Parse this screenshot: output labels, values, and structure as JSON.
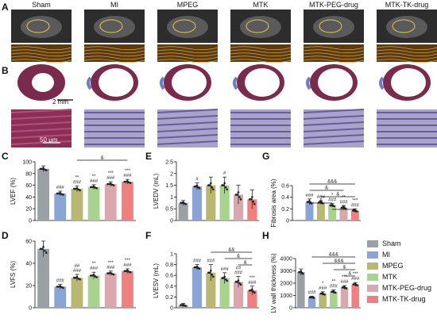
{
  "groups": [
    "Sham",
    "MI",
    "MPEG",
    "MTK",
    "MTK-PEG-drug",
    "MTK-TK-drug"
  ],
  "colors": [
    "#9aa0a6",
    "#8aa4d6",
    "#b9b872",
    "#a6d48e",
    "#d8a8ae",
    "#f08080"
  ],
  "panel_letters": {
    "A": "A",
    "B": "B",
    "C": "C",
    "D": "D",
    "E": "E",
    "F": "F",
    "G": "G",
    "H": "H"
  },
  "scale_bars": {
    "heart": "2 mm",
    "tissue": "50 μm"
  },
  "chart_data": [
    {
      "id": "C",
      "type": "bar",
      "ylabel": "LVEF (%)",
      "ylim": [
        0,
        100
      ],
      "yticks": [
        0,
        20,
        40,
        60,
        80,
        100
      ],
      "values": [
        88,
        46,
        54,
        57,
        62,
        66
      ],
      "errors": [
        5,
        4,
        5,
        4,
        4,
        4
      ],
      "sig": [
        "",
        "###",
        "**\n###",
        "**\n###",
        "***\n###",
        "***\n###"
      ],
      "brackets": [
        {
          "from": 2,
          "to": 5,
          "label": "&"
        }
      ]
    },
    {
      "id": "D",
      "type": "bar",
      "ylabel": "LVFS (%)",
      "ylim": [
        0,
        60
      ],
      "yticks": [
        0,
        20,
        40,
        60
      ],
      "values": [
        53,
        19,
        27,
        29,
        31,
        33
      ],
      "errors": [
        7,
        2,
        3,
        3,
        2,
        2
      ],
      "sig": [
        "",
        "###",
        "##\n###",
        "**\n###",
        "***\n###",
        "***\n###"
      ],
      "brackets": []
    },
    {
      "id": "E",
      "type": "bar",
      "ylabel": "LVEDV (mL)",
      "ylim": [
        0,
        2.5
      ],
      "yticks": [
        0,
        0.5,
        1.0,
        1.5,
        2.0,
        2.5
      ],
      "values": [
        0.75,
        1.45,
        1.5,
        1.5,
        1.1,
        0.9
      ],
      "errors": [
        0.1,
        0.15,
        0.35,
        0.35,
        0.4,
        0.4
      ],
      "sig": [
        "",
        "#",
        "",
        "#",
        "",
        ""
      ],
      "brackets": []
    },
    {
      "id": "F",
      "type": "bar",
      "ylabel": "LVESV (mL)",
      "ylim": [
        0,
        1.0
      ],
      "yticks": [
        0,
        0.2,
        0.4,
        0.6,
        0.8,
        1.0
      ],
      "values": [
        0.05,
        0.75,
        0.65,
        0.55,
        0.48,
        0.32
      ],
      "errors": [
        0.03,
        0.05,
        0.15,
        0.1,
        0.1,
        0.08
      ],
      "sig": [
        "",
        "###",
        "###",
        "###",
        "##\n###",
        "***\n###"
      ],
      "brackets": [
        {
          "from": 2,
          "to": 5,
          "label": "&&"
        },
        {
          "from": 3,
          "to": 5,
          "label": "&"
        },
        {
          "from": 4,
          "to": 5,
          "label": "&"
        }
      ]
    },
    {
      "id": "G",
      "type": "bar",
      "ylabel": "Fibrosis area (%)",
      "ylim": [
        0,
        0.6
      ],
      "yticks": [
        0.0,
        0.2,
        0.4,
        0.6
      ],
      "values": [
        0.0,
        0.32,
        0.31,
        0.26,
        0.22,
        0.17
      ],
      "errors": [
        0.0,
        0.05,
        0.03,
        0.03,
        0.03,
        0.03
      ],
      "sig": [
        "",
        "###",
        "###",
        "*\n###",
        "**\n###",
        "***\n###"
      ],
      "brackets": [
        {
          "from": 1,
          "to": 5,
          "label": "&&&"
        },
        {
          "from": 1,
          "to": 4,
          "label": "&"
        },
        {
          "from": 2,
          "to": 5,
          "label": "&"
        },
        {
          "from": 1,
          "to": 3,
          "label": "&"
        },
        {
          "from": 3,
          "to": 5,
          "label": "&"
        }
      ]
    },
    {
      "id": "H",
      "type": "bar",
      "ylabel": "LV wall thickness (%)",
      "ylim": [
        0,
        4000
      ],
      "yticks": [
        0,
        1000,
        2000,
        3000,
        4000
      ],
      "values": [
        2900,
        850,
        1150,
        1300,
        1650,
        1900
      ],
      "errors": [
        250,
        80,
        150,
        150,
        150,
        150
      ],
      "sig": [
        "",
        "###",
        "*\n###",
        "**\n###",
        "***\n###",
        "***\n###"
      ],
      "brackets": [
        {
          "from": 1,
          "to": 5,
          "label": "&&&"
        },
        {
          "from": 2,
          "to": 5,
          "label": "&&&"
        },
        {
          "from": 3,
          "to": 5,
          "label": "&"
        },
        {
          "from": 4,
          "to": 5,
          "label": "&"
        }
      ]
    }
  ]
}
